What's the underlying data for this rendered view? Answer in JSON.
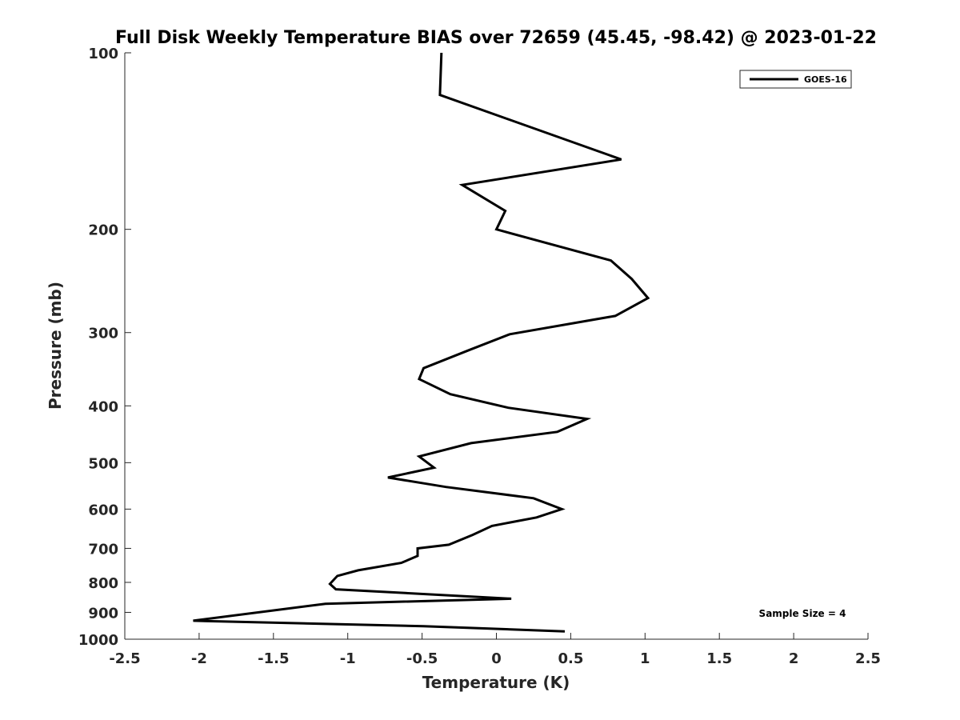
{
  "chart_data": {
    "type": "line",
    "title": "Full Disk Weekly Temperature BIAS over 72659 (45.45, -98.42) @ 2023-01-22",
    "xlabel": "Temperature (K)",
    "ylabel": "Pressure (mb)",
    "xlim": [
      -2.5,
      2.5
    ],
    "ylim": [
      100,
      1000
    ],
    "y_scale": "log",
    "y_reversed": true,
    "x_ticks": [
      -2.5,
      -2,
      -1.5,
      -1,
      -0.5,
      0,
      0.5,
      1,
      1.5,
      2,
      2.5
    ],
    "x_tick_labels": [
      "-2.5",
      "-2",
      "-1.5",
      "-1",
      "-0.5",
      "0",
      "0.5",
      "1",
      "1.5",
      "2",
      "2.5"
    ],
    "y_ticks": [
      100,
      200,
      300,
      400,
      500,
      600,
      700,
      800,
      900,
      1000
    ],
    "y_tick_labels": [
      "100",
      "200",
      "300",
      "400",
      "500",
      "600",
      "700",
      "800",
      "900",
      "1000"
    ],
    "grid": false,
    "legend_position": "top-right",
    "annotation": "Sample Size = 4",
    "series": [
      {
        "name": "GOES-16",
        "color": "#000000",
        "x": [
          -0.37,
          -0.38,
          0.84,
          -0.23,
          0.06,
          0.0,
          0.77,
          0.91,
          1.02,
          0.8,
          0.09,
          -0.18,
          -0.49,
          -0.52,
          -0.31,
          0.08,
          0.61,
          0.41,
          -0.17,
          -0.52,
          -0.42,
          -0.73,
          -0.34,
          0.25,
          0.44,
          0.27,
          -0.03,
          -0.16,
          -0.32,
          -0.53,
          -0.53,
          -0.64,
          -0.93,
          -1.07,
          -1.12,
          -1.08,
          0.1,
          -1.15,
          -2.04,
          -0.49,
          0.46
        ],
        "y": [
          100,
          118,
          152,
          168,
          186,
          200,
          226,
          243,
          262,
          281,
          302,
          321,
          345,
          360,
          382,
          403,
          421,
          443,
          463,
          488,
          510,
          530,
          550,
          575,
          600,
          620,
          641,
          664,
          690,
          700,
          721,
          741,
          763,
          780,
          805,
          822,
          853,
          870,
          930,
          950,
          970
        ]
      }
    ]
  }
}
